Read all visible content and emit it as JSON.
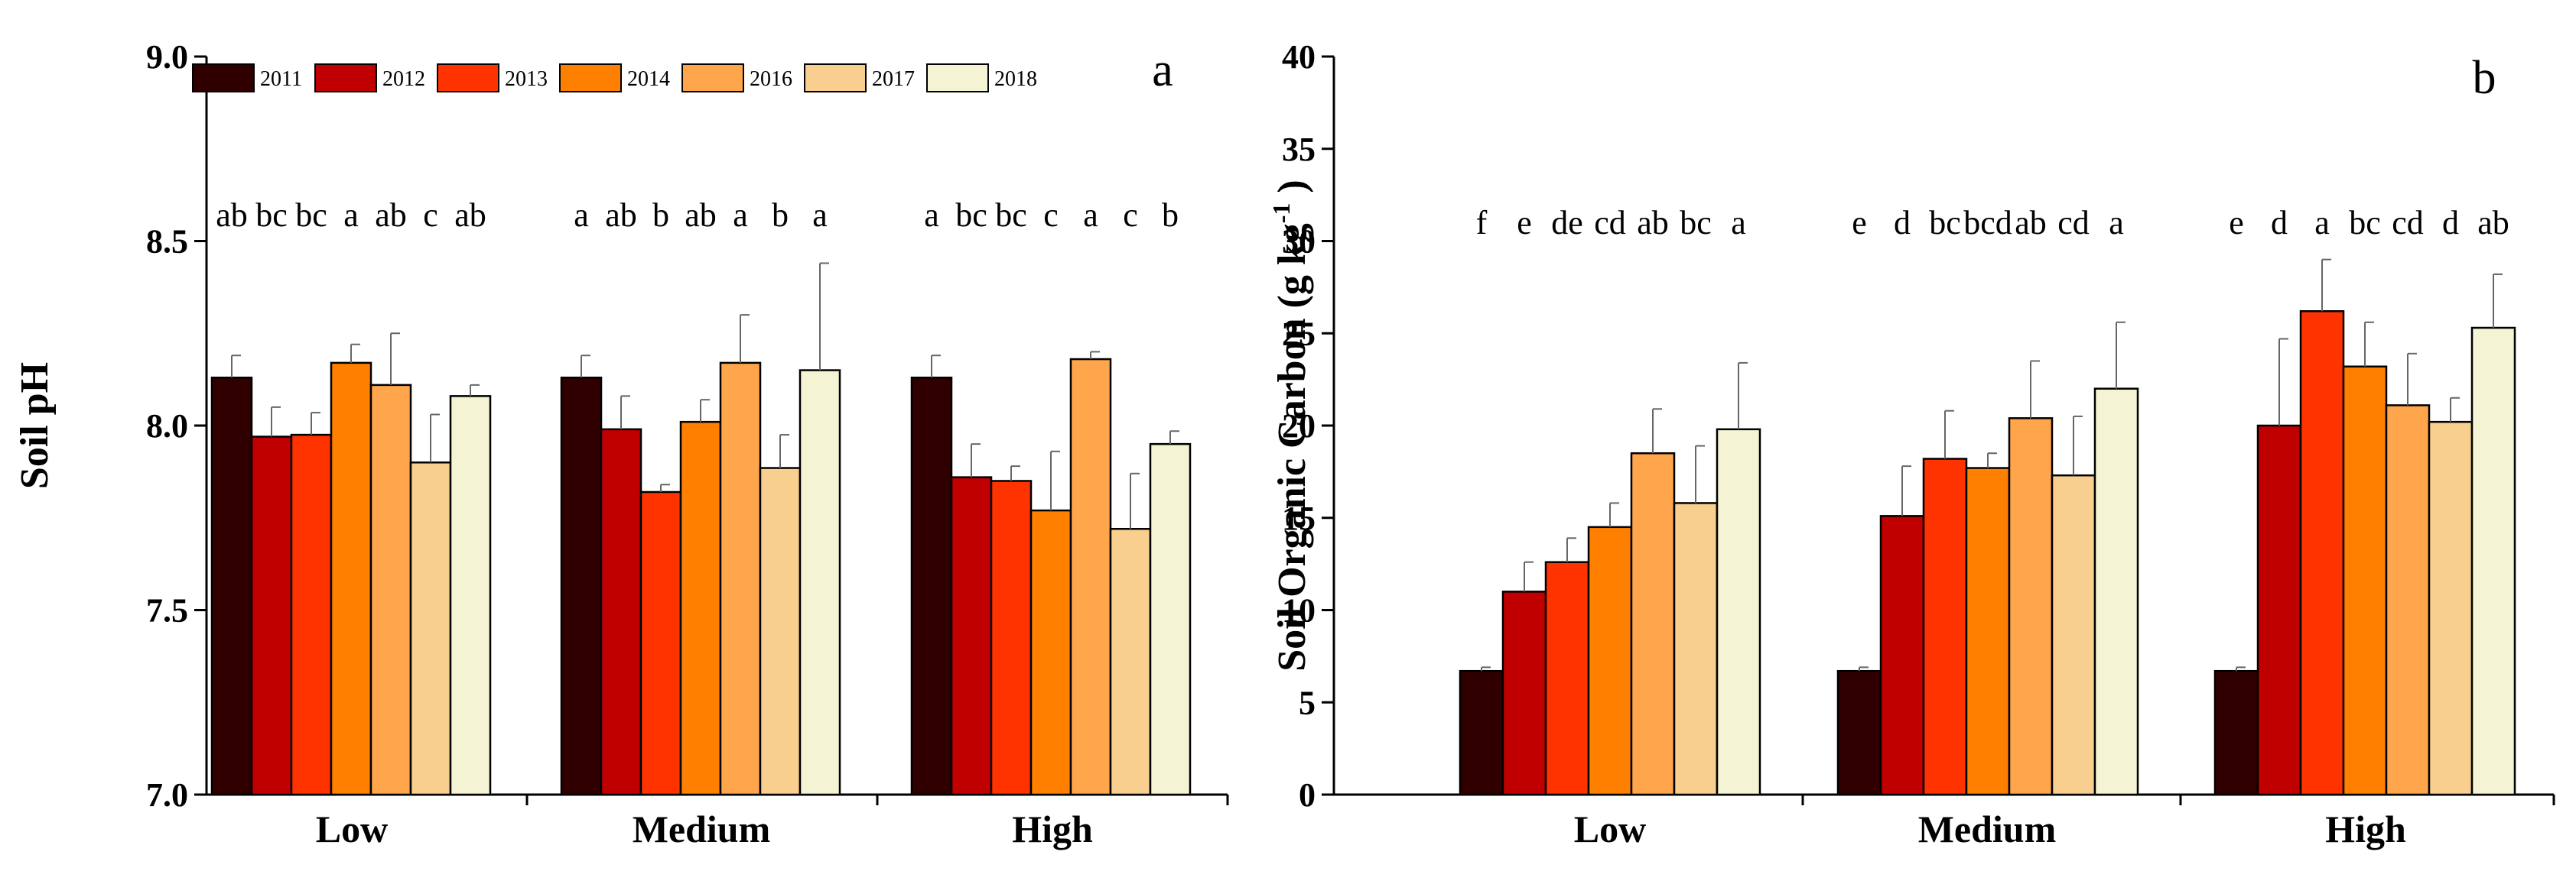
{
  "chart_data": [
    {
      "type": "bar",
      "panel_label": "a",
      "title": "",
      "xlabel": "",
      "ylabel": "Soil pH",
      "ylim": [
        7.0,
        9.0
      ],
      "yticks": [
        "7.0",
        "7.5",
        "8.0",
        "8.5",
        "9.0"
      ],
      "grid": false,
      "legend_position": "top-left",
      "categories": [
        "Low",
        "Medium",
        "High"
      ],
      "series": [
        {
          "name": "2011",
          "color": "#300000",
          "values": [
            8.13,
            8.13,
            8.13
          ],
          "errors": [
            0.06,
            0.06,
            0.06
          ],
          "letters": [
            "ab",
            "a",
            "a"
          ]
        },
        {
          "name": "2012",
          "color": "#c00000",
          "values": [
            7.97,
            7.99,
            7.86
          ],
          "errors": [
            0.08,
            0.09,
            0.09
          ],
          "letters": [
            "bc",
            "ab",
            "bc"
          ]
        },
        {
          "name": "2013",
          "color": "#ff3300",
          "values": [
            7.975,
            7.82,
            7.85
          ],
          "errors": [
            0.06,
            0.02,
            0.04
          ],
          "letters": [
            "bc",
            "b",
            "bc"
          ]
        },
        {
          "name": "2014",
          "color": "#ff8000",
          "values": [
            8.17,
            8.01,
            7.77
          ],
          "errors": [
            0.05,
            0.06,
            0.16
          ],
          "letters": [
            "a",
            "ab",
            "c"
          ]
        },
        {
          "name": "2016",
          "color": "#ffa64d",
          "values": [
            8.11,
            8.17,
            8.18
          ],
          "errors": [
            0.14,
            0.13,
            0.02
          ],
          "letters": [
            "ab",
            "a",
            "a"
          ]
        },
        {
          "name": "2017",
          "color": "#f8cf8f",
          "values": [
            7.9,
            7.885,
            7.72
          ],
          "errors": [
            0.13,
            0.09,
            0.15
          ],
          "letters": [
            "c",
            "b",
            "c"
          ]
        },
        {
          "name": "2018",
          "color": "#f4f3d4",
          "values": [
            8.08,
            8.15,
            7.95
          ],
          "errors": [
            0.03,
            0.29,
            0.035
          ],
          "letters": [
            "ab",
            "a",
            "b"
          ]
        }
      ]
    },
    {
      "type": "bar",
      "panel_label": "b",
      "title": "",
      "xlabel": "",
      "ylabel": "Soil Organic Carbon (g kg",
      "ylabel_sup": "-1",
      "ylabel_end": ")",
      "ylim": [
        0,
        40
      ],
      "yticks": [
        "0",
        "5",
        "10",
        "15",
        "20",
        "25",
        "30",
        "35",
        "40"
      ],
      "grid": false,
      "categories": [
        "Low",
        "Medium",
        "High"
      ],
      "series": [
        {
          "name": "2011",
          "color": "#300000",
          "values": [
            6.7,
            6.7,
            6.7
          ],
          "errors": [
            0.2,
            0.2,
            0.2
          ],
          "letters": [
            "f",
            "e",
            "e"
          ]
        },
        {
          "name": "2012",
          "color": "#c00000",
          "values": [
            11.0,
            15.1,
            20.0
          ],
          "errors": [
            1.6,
            2.7,
            4.7
          ],
          "letters": [
            "e",
            "d",
            "d"
          ]
        },
        {
          "name": "2013",
          "color": "#ff3300",
          "values": [
            12.6,
            18.2,
            26.2
          ],
          "errors": [
            1.3,
            2.6,
            2.8
          ],
          "letters": [
            "de",
            "bc",
            "a"
          ]
        },
        {
          "name": "2014",
          "color": "#ff8000",
          "values": [
            14.5,
            17.7,
            23.2
          ],
          "errors": [
            1.3,
            0.8,
            2.4
          ],
          "letters": [
            "cd",
            "bcd",
            "bc"
          ]
        },
        {
          "name": "2016",
          "color": "#ffa64d",
          "values": [
            18.5,
            20.4,
            21.1
          ],
          "errors": [
            2.4,
            3.1,
            2.8
          ],
          "letters": [
            "ab",
            "ab",
            "cd"
          ]
        },
        {
          "name": "2017",
          "color": "#f8cf8f",
          "values": [
            15.8,
            17.3,
            20.2
          ],
          "errors": [
            3.1,
            3.2,
            1.3
          ],
          "letters": [
            "bc",
            "cd",
            "d"
          ]
        },
        {
          "name": "2018",
          "color": "#f4f3d4",
          "values": [
            19.8,
            22.0,
            25.3
          ],
          "errors": [
            3.6,
            3.6,
            2.9
          ],
          "letters": [
            "a",
            "a",
            "ab"
          ]
        }
      ]
    }
  ]
}
